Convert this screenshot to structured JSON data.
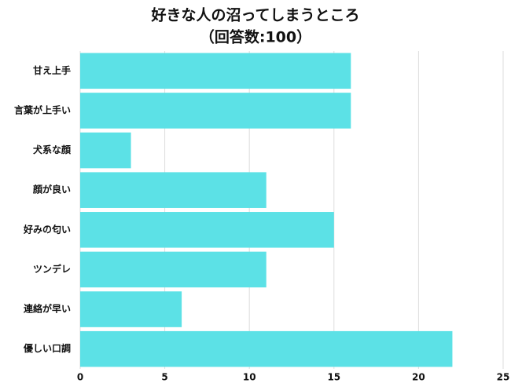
{
  "chart_data": {
    "type": "hbar",
    "title": "好きな人の沼ってしまうところ",
    "subtitle": "（回答数:100）",
    "categories": [
      "甘え上手",
      "言葉が上手い",
      "犬系な顔",
      "顔が良い",
      "好みの匂い",
      "ツンデレ",
      "連絡が早い",
      "優しい口調"
    ],
    "values": [
      16,
      16,
      3,
      11,
      15,
      11,
      6,
      22
    ],
    "color": "#5ce1e6",
    "xlim": [
      0,
      25
    ],
    "xticks": [
      0,
      5,
      10,
      15,
      20,
      25
    ],
    "grid": true
  }
}
